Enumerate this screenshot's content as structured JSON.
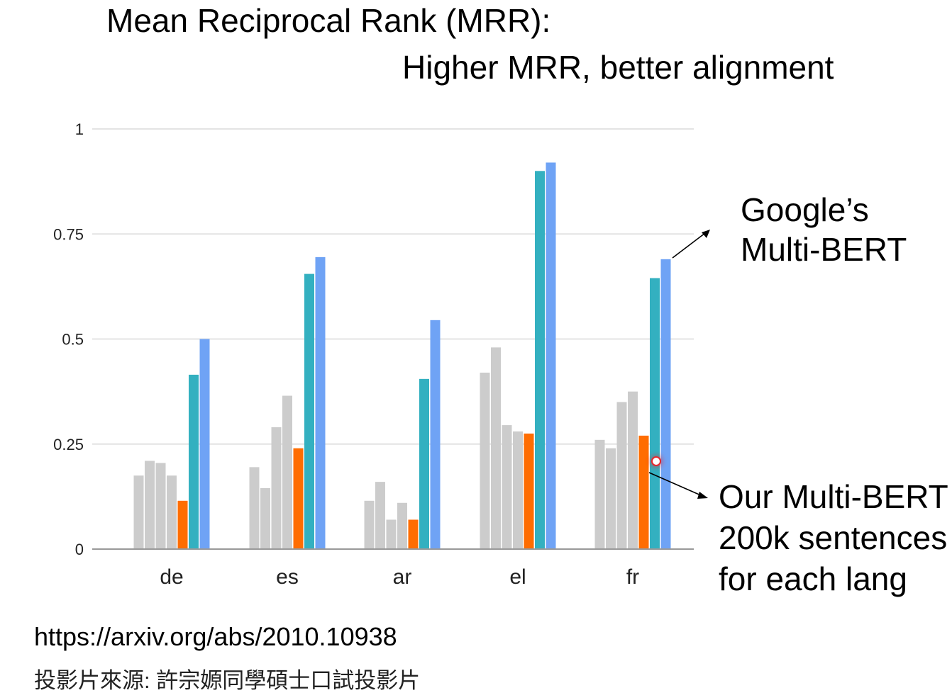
{
  "title": "Mean Reciprocal Rank (MRR):",
  "subtitle": "Higher MRR, better alignment",
  "annotations": {
    "google_line1": "Google’s",
    "google_line2": "Multi-BERT",
    "ours_line1": "Our Multi-BERT",
    "ours_line2": "200k sentences",
    "ours_line3": "for each lang"
  },
  "footer": {
    "url": "https://arxiv.org/abs/2010.10938",
    "source": "投影片來源: 許宗嫄同學碩士口試投影片"
  },
  "colors": {
    "gray": "#cccccc",
    "orange": "#ff6d01",
    "teal": "#33b0c0",
    "blue": "#6fa3f5",
    "grid": "#e3e3e3",
    "axis": "#999999"
  },
  "chart_data": {
    "type": "bar",
    "categories": [
      "de",
      "es",
      "ar",
      "el",
      "fr"
    ],
    "ylim": [
      0,
      1
    ],
    "yticks": [
      {
        "value": 0,
        "label": "0"
      },
      {
        "value": 0.25,
        "label": "0.25"
      },
      {
        "value": 0.5,
        "label": "0.5"
      },
      {
        "value": 0.75,
        "label": "0.75"
      },
      {
        "value": 1,
        "label": "1"
      }
    ],
    "grid": true,
    "series": [
      {
        "color": "gray",
        "values": [
          0.175,
          0.195,
          0.115,
          0.42,
          0.26
        ]
      },
      {
        "color": "gray",
        "values": [
          0.21,
          0.145,
          0.16,
          0.48,
          0.24
        ]
      },
      {
        "color": "gray",
        "values": [
          0.205,
          0.29,
          0.07,
          0.295,
          0.35
        ]
      },
      {
        "color": "gray",
        "values": [
          0.175,
          0.365,
          0.11,
          0.28,
          0.375
        ]
      },
      {
        "color": "orange",
        "values": [
          0.115,
          0.24,
          0.07,
          0.275,
          0.27
        ]
      },
      {
        "color": "teal",
        "values": [
          0.415,
          0.655,
          0.405,
          0.9,
          0.645
        ]
      },
      {
        "color": "blue",
        "values": [
          0.5,
          0.695,
          0.545,
          0.92,
          0.69
        ]
      }
    ]
  }
}
